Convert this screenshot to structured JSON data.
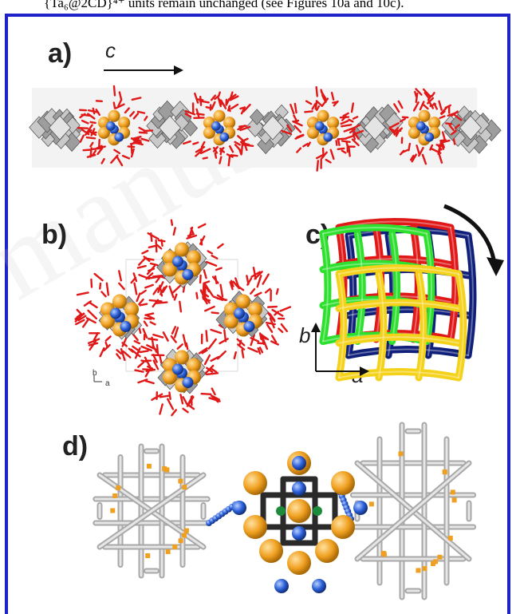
{
  "caption_fragment": "{Ta₆@2CD}⁴⁺ units remain unchanged (see Figures 10a and 10c).",
  "watermark": "manusc",
  "panels": {
    "a": {
      "label": "a)",
      "axis": "c"
    },
    "b": {
      "label": "b)",
      "axis_b": "b",
      "axis_a": "a"
    },
    "c": {
      "label": "c)",
      "axis_b": "b",
      "axis_a": "a"
    },
    "d": {
      "label": "d)"
    }
  },
  "colors": {
    "frame": "#1f22c8",
    "cd_red": "#e01818",
    "ta_orange": "#f0a020",
    "bridge_blue": "#2a5fd8",
    "polyoxometalate_grey": "#b8b8b8",
    "net_green": "#2ee02e",
    "net_yellow": "#f5d21a",
    "net_navy": "#10207a"
  }
}
